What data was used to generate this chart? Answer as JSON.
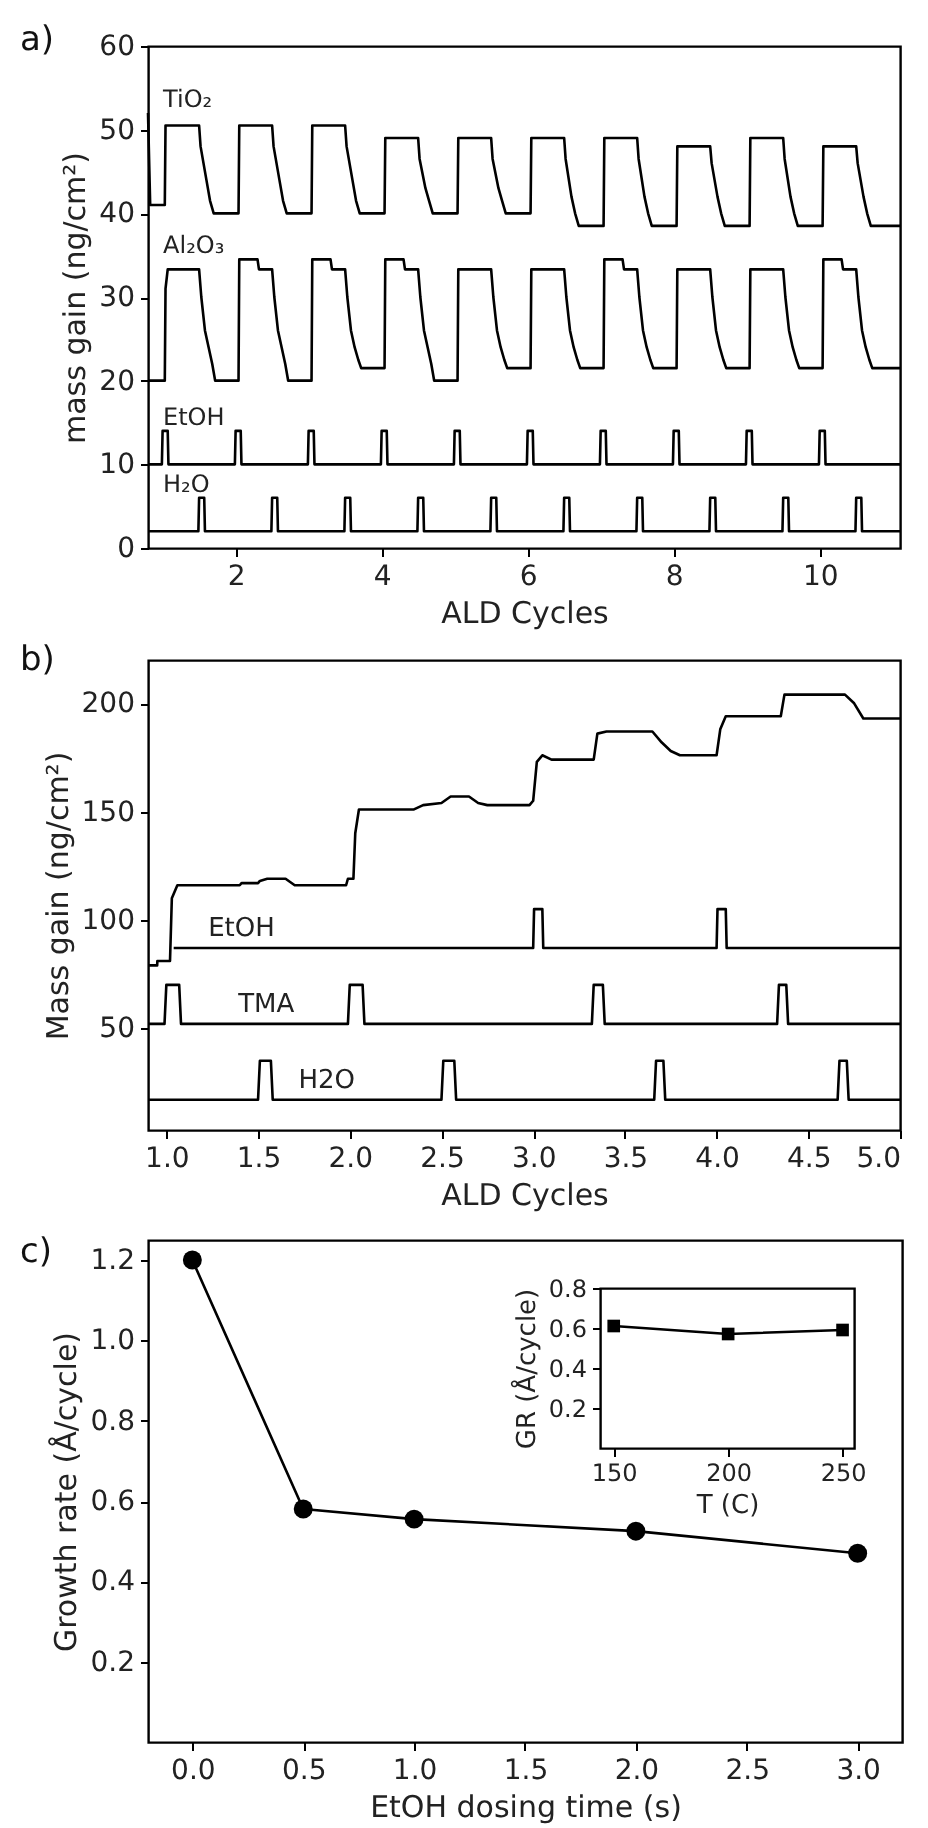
{
  "chart_data": [
    {
      "type": "line",
      "title": "a)",
      "xlabel": "ALD Cycles",
      "ylabel": "mass gain (ng/cm²)",
      "xlim": [
        0.8,
        11.1
      ],
      "ylim": [
        0,
        60
      ],
      "xticks": [
        2,
        4,
        6,
        8,
        10
      ],
      "yticks": [
        0,
        10,
        20,
        30,
        40,
        50,
        60
      ],
      "series": [
        {
          "name": "TiO₂",
          "color": "#000000",
          "x": [
            0.8,
            0.83,
            1.03,
            1.04,
            1.5,
            1.52,
            1.6,
            1.65,
            1.7,
            2.04,
            2.05,
            2.5,
            2.52,
            2.6,
            2.65,
            2.7,
            3.04,
            3.05,
            3.5,
            3.52,
            3.6,
            3.65,
            3.7,
            4.04,
            4.05,
            4.5,
            4.52,
            4.6,
            4.65,
            4.7,
            5.04,
            5.05,
            5.5,
            5.52,
            5.6,
            5.65,
            5.7,
            6.04,
            6.05,
            6.5,
            6.52,
            6.6,
            6.65,
            6.7,
            7.04,
            7.05,
            7.5,
            7.52,
            7.6,
            7.65,
            7.7,
            8.04,
            8.05,
            8.5,
            8.52,
            8.6,
            8.65,
            8.7,
            9.04,
            9.05,
            9.5,
            9.52,
            9.6,
            9.65,
            9.7,
            10.04,
            10.05,
            10.5,
            10.52,
            10.6,
            10.65,
            10.7,
            11.1
          ],
          "values": [
            52,
            41,
            41,
            50.5,
            50.5,
            48,
            44,
            41.5,
            40,
            40,
            50.5,
            50.5,
            48,
            44,
            41.5,
            40,
            40,
            50.5,
            50.5,
            48,
            44,
            41.5,
            40,
            40,
            49,
            49,
            46.5,
            43,
            41.5,
            40,
            40,
            49,
            49,
            46.5,
            43,
            41.5,
            40,
            40,
            49,
            49,
            46.5,
            42,
            40,
            38.5,
            38.5,
            49,
            49,
            46.5,
            42,
            40,
            38.5,
            38.5,
            48,
            48,
            46,
            42,
            40,
            38.5,
            38.5,
            49,
            49,
            46.5,
            42,
            40,
            38.5,
            38.5,
            48,
            48,
            46,
            42,
            40,
            38.5,
            38.5
          ]
        },
        {
          "name": "Al₂O₃",
          "color": "#000000",
          "x": [
            0.8,
            1.03,
            1.04,
            1.07,
            1.5,
            1.53,
            1.58,
            1.63,
            1.68,
            1.72,
            2.04,
            2.05,
            2.3,
            2.32,
            2.5,
            2.53,
            2.58,
            2.63,
            2.68,
            2.72,
            3.04,
            3.05,
            3.3,
            3.32,
            3.5,
            3.53,
            3.58,
            3.63,
            3.68,
            3.72,
            4.04,
            4.05,
            4.3,
            4.32,
            4.5,
            4.53,
            4.58,
            4.63,
            4.68,
            4.72,
            5.04,
            5.05,
            5.5,
            5.53,
            5.58,
            5.63,
            5.68,
            5.72,
            6.04,
            6.05,
            6.5,
            6.53,
            6.58,
            6.63,
            6.68,
            6.72,
            7.04,
            7.05,
            7.3,
            7.32,
            7.5,
            7.53,
            7.58,
            7.63,
            7.68,
            7.72,
            8.04,
            8.05,
            8.5,
            8.53,
            8.58,
            8.63,
            8.68,
            8.72,
            9.04,
            9.05,
            9.5,
            9.53,
            9.58,
            9.63,
            9.68,
            9.72,
            10.04,
            10.05,
            10.3,
            10.32,
            10.5,
            10.53,
            10.58,
            10.63,
            10.68,
            10.72,
            11.1
          ],
          "values": [
            20,
            20,
            31,
            33.3,
            33.3,
            30,
            26,
            24,
            22,
            20,
            20,
            34.5,
            34.5,
            33.3,
            33.3,
            30,
            26,
            24,
            22,
            20,
            20,
            34.5,
            34.5,
            33.3,
            33.3,
            30,
            26,
            24,
            22.5,
            21.5,
            21.5,
            34.5,
            34.5,
            33.3,
            33.3,
            30,
            26,
            24,
            22,
            20,
            20,
            33.3,
            33.3,
            30,
            26,
            24,
            22.5,
            21.5,
            21.5,
            33.3,
            33.3,
            30,
            26,
            24,
            22.5,
            21.5,
            21.5,
            34.5,
            34.5,
            33.3,
            33.3,
            30,
            26,
            24,
            22.5,
            21.5,
            21.5,
            33.3,
            33.3,
            30,
            26,
            24,
            22.5,
            21.5,
            21.5,
            33.3,
            33.3,
            30,
            26,
            24,
            22.5,
            21.5,
            21.5,
            34.5,
            34.5,
            33.3,
            33.3,
            30,
            26,
            24,
            22.5,
            21.5,
            21.5
          ]
        },
        {
          "name": "EtOH",
          "color": "#000000",
          "x": [
            0.8,
            0.99,
            1,
            1.07,
            1.08,
            1.99,
            2,
            2.07,
            2.08,
            2.99,
            3,
            3.07,
            3.08,
            3.99,
            4,
            4.07,
            4.08,
            4.99,
            5,
            5.07,
            5.08,
            5.99,
            6,
            6.07,
            6.08,
            6.99,
            7,
            7.07,
            7.08,
            7.99,
            8,
            8.07,
            8.08,
            8.99,
            9,
            9.07,
            9.08,
            9.99,
            10,
            10.07,
            10.08,
            11.1
          ],
          "values": [
            10,
            10,
            14,
            14,
            10,
            10,
            14,
            14,
            10,
            10,
            14,
            14,
            10,
            10,
            14,
            14,
            10,
            10,
            14,
            14,
            10,
            10,
            14,
            14,
            10,
            10,
            14,
            14,
            10,
            10,
            14,
            14,
            10,
            10,
            14,
            14,
            10,
            10,
            14,
            14,
            10,
            10
          ]
        },
        {
          "name": "H₂O",
          "color": "#000000",
          "x": [
            0.8,
            1.49,
            1.5,
            1.57,
            1.58,
            2.49,
            2.5,
            2.57,
            2.58,
            3.49,
            3.5,
            3.57,
            3.58,
            4.49,
            4.5,
            4.57,
            4.58,
            5.49,
            5.5,
            5.57,
            5.58,
            6.49,
            6.5,
            6.57,
            6.58,
            7.49,
            7.5,
            7.57,
            7.58,
            8.49,
            8.5,
            8.57,
            8.58,
            9.49,
            9.5,
            9.57,
            9.58,
            10.49,
            10.5,
            10.57,
            10.58,
            11.1
          ],
          "values": [
            2,
            2,
            6,
            6,
            2,
            2,
            6,
            6,
            2,
            2,
            6,
            6,
            2,
            2,
            6,
            6,
            2,
            2,
            6,
            6,
            2,
            2,
            6,
            6,
            2,
            2,
            6,
            6,
            2,
            2,
            6,
            6,
            2,
            2,
            6,
            6,
            2,
            2,
            6,
            6,
            2,
            2
          ]
        }
      ]
    },
    {
      "type": "line",
      "title": "b)",
      "xlabel": "ALD Cycles",
      "ylabel": "Mass gain (ng/cm²)",
      "xlim": [
        0.9,
        5.0
      ],
      "ylim": [
        3,
        220
      ],
      "xticks": [
        {
          "value": 1,
          "label": "1.0"
        },
        1.5,
        {
          "value": 2,
          "label": "2.0"
        },
        2.5,
        {
          "value": 3,
          "label": "3.0"
        },
        3.5,
        {
          "value": 4,
          "label": "4.0"
        },
        4.5,
        {
          "value": 5,
          "label": "5.0"
        }
      ],
      "yticks": [
        50,
        100,
        150,
        200
      ],
      "series": [
        {
          "color": "#000000",
          "x": [
            0.9,
            0.95,
            0.951,
            1.02,
            1.03,
            1.06,
            1.4,
            1.41,
            1.5,
            1.51,
            1.55,
            1.65,
            1.7,
            1.98,
            1.99,
            2.02,
            2.03,
            2.05,
            2.35,
            2.4,
            2.5,
            2.55,
            2.65,
            2.7,
            2.75,
            2.98,
            3.0,
            3.02,
            3.05,
            3.1,
            3.33,
            3.35,
            3.4,
            3.65,
            3.7,
            3.75,
            3.8,
            4.0,
            4.02,
            4.05,
            4.35,
            4.37,
            4.7,
            4.75,
            4.8,
            5.0
          ],
          "values": [
            79,
            79,
            81,
            81,
            110,
            116,
            116,
            117,
            117,
            118,
            119,
            119,
            116,
            116,
            119,
            119,
            140,
            151,
            151,
            153,
            154,
            157,
            157,
            154,
            153,
            153,
            155,
            173,
            176,
            174,
            174,
            186,
            187,
            187,
            182,
            178,
            176,
            176,
            188,
            194,
            194,
            204,
            204,
            200,
            193,
            193
          ]
        },
        {
          "name": "EtOH",
          "color": "#000000",
          "x": [
            1.04,
            3.0,
            3.005,
            3.05,
            3.055,
            4.0,
            4.005,
            4.05,
            4.055,
            5.0
          ],
          "values": [
            87,
            87,
            105,
            105,
            87,
            87,
            105,
            105,
            87,
            87
          ]
        },
        {
          "name": "TMA",
          "color": "#000000",
          "x": [
            0.9,
            0.99,
            1.0,
            1.07,
            1.08,
            1.99,
            2.0,
            2.07,
            2.08,
            3.32,
            3.33,
            3.38,
            3.39,
            4.33,
            4.34,
            4.38,
            4.39,
            5.0
          ],
          "values": [
            52,
            52,
            70,
            70,
            52,
            52,
            70,
            70,
            52,
            52,
            70,
            70,
            52,
            52,
            70,
            70,
            52,
            52
          ]
        },
        {
          "name": "H2O",
          "color": "#000000",
          "x": [
            0.9,
            1.5,
            1.51,
            1.57,
            1.58,
            2.5,
            2.51,
            2.57,
            2.58,
            3.66,
            3.67,
            3.71,
            3.72,
            4.66,
            4.67,
            4.71,
            4.72,
            5.0
          ],
          "values": [
            17,
            17,
            35,
            35,
            17,
            17,
            35,
            35,
            17,
            17,
            35,
            35,
            17,
            17,
            35,
            35,
            17,
            17
          ]
        }
      ]
    },
    {
      "type": "line",
      "title": "c)",
      "xlabel": "EtOH dosing time (s)",
      "ylabel": "Growth rate (Å/cycle)",
      "xlim": [
        -0.2,
        3.2
      ],
      "ylim": [
        0,
        1.25
      ],
      "xticks": [
        {
          "value": 0,
          "label": "0.0"
        },
        0.5,
        {
          "value": 1,
          "label": "1.0"
        },
        1.5,
        {
          "value": 2,
          "label": "2.0"
        },
        2.5,
        {
          "value": 3,
          "label": "3.0"
        }
      ],
      "yticks": [
        0.2,
        0.4,
        0.6,
        0.8,
        {
          "value": 1,
          "label": "1.0"
        },
        1.2
      ],
      "marker": "circle",
      "x": [
        0,
        0.5,
        1,
        2,
        3
      ],
      "series": [
        {
          "color": "#000000",
          "values": [
            1.2,
            0.58,
            0.555,
            0.525,
            0.47
          ]
        }
      ]
    },
    {
      "type": "line",
      "xlabel": "T (C)",
      "ylabel": "GR (Å/cycle)",
      "xlim": [
        144,
        255
      ],
      "ylim": [
        0,
        0.8
      ],
      "xticks": [
        150,
        200,
        250
      ],
      "yticks": [
        0.2,
        0.4,
        0.6,
        0.8
      ],
      "marker": "square",
      "x": [
        150,
        200,
        250
      ],
      "series": [
        {
          "color": "#000000",
          "values": [
            0.61,
            0.57,
            0.59
          ]
        }
      ]
    }
  ]
}
